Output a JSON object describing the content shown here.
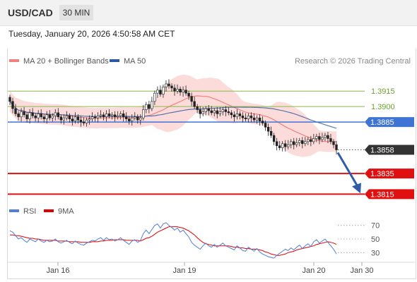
{
  "header": {
    "symbol": "USD/CAD",
    "timeframe": "30 MIN"
  },
  "datetime": "Tuesday, January 20, 2026 4:50:58 AM CET",
  "legend": {
    "bollinger_label": "MA 20 + Bollinger Bands",
    "ma50_label": "MA 50",
    "copyright": "Research © 2026 Trading Central",
    "rsi_label": "RSI",
    "rsi_ma_label": "9MA"
  },
  "colors": {
    "bollinger": "#f08080",
    "band_fill": "#fbd0cf",
    "ma50": "#2c5aa0",
    "rsi": "#4f7fd6",
    "rsi_ma": "#e00000",
    "resistance": "#8ab84a",
    "pivot": "#3f74d4",
    "support": "#e01010",
    "current": "#333333",
    "arrow": "#2f5da8"
  },
  "chart_data": [
    {
      "type": "candlestick",
      "title": "USD/CAD 30 MIN",
      "x_ticks": [
        "Jan 16",
        "Jan 19",
        "Jan 20",
        "Jan 30"
      ],
      "ylim": [
        1.3805,
        1.3935
      ],
      "levels": [
        {
          "value": 1.3915,
          "label": "1.3915",
          "kind": "resistance"
        },
        {
          "value": 1.39,
          "label": "1.3900",
          "kind": "resistance"
        },
        {
          "value": 1.3885,
          "label": "1.3885",
          "kind": "pivot"
        },
        {
          "value": 1.3858,
          "label": "1.3858",
          "kind": "current"
        },
        {
          "value": 1.3835,
          "label": "1.3835",
          "kind": "support"
        },
        {
          "value": 1.3815,
          "label": "1.3815",
          "kind": "support"
        }
      ],
      "close": [
        1.3905,
        1.3898,
        1.3893,
        1.389,
        1.3895,
        1.3892,
        1.3888,
        1.3894,
        1.3891,
        1.3889,
        1.3893,
        1.389,
        1.3888,
        1.3892,
        1.3889,
        1.3891,
        1.3894,
        1.389,
        1.3887,
        1.3889,
        1.3891,
        1.3888,
        1.3886,
        1.389,
        1.3887,
        1.3885,
        1.3884,
        1.3887,
        1.3888,
        1.389,
        1.3889,
        1.3891,
        1.3892,
        1.389,
        1.3893,
        1.3891,
        1.3892,
        1.389,
        1.3891,
        1.3893,
        1.389,
        1.3888,
        1.3886,
        1.3889,
        1.389,
        1.3887,
        1.3889,
        1.3897,
        1.3902,
        1.3898,
        1.3905,
        1.3913,
        1.3916,
        1.3912,
        1.3919,
        1.3922,
        1.392,
        1.3918,
        1.3915,
        1.3917,
        1.3914,
        1.3916,
        1.3913,
        1.391,
        1.3905,
        1.39,
        1.3897,
        1.3893,
        1.3895,
        1.3898,
        1.3896,
        1.3894,
        1.3896,
        1.3893,
        1.3895,
        1.3897,
        1.3895,
        1.3894,
        1.3892,
        1.389,
        1.3893,
        1.3891,
        1.3889,
        1.3888,
        1.3891,
        1.3889,
        1.3887,
        1.3889,
        1.3886,
        1.3884,
        1.388,
        1.3876,
        1.3872,
        1.3866,
        1.3862,
        1.386,
        1.3864,
        1.3861,
        1.3863,
        1.3866,
        1.3863,
        1.3865,
        1.3867,
        1.3864,
        1.3866,
        1.3868,
        1.3866,
        1.3869,
        1.3871,
        1.3868,
        1.387,
        1.3872,
        1.3869,
        1.3866,
        1.3863,
        1.3858
      ],
      "series": [
        {
          "name": "MA 20 + Bollinger Bands"
        },
        {
          "name": "MA 50"
        }
      ]
    },
    {
      "type": "line",
      "title": "RSI",
      "ylim": [
        20,
        80
      ],
      "y_ticks": [
        70,
        50,
        30
      ],
      "series": [
        {
          "name": "RSI",
          "values": [
            62,
            60,
            55,
            50,
            52,
            48,
            45,
            50,
            48,
            46,
            50,
            47,
            45,
            48,
            46,
            47,
            50,
            46,
            44,
            46,
            48,
            45,
            43,
            47,
            44,
            42,
            41,
            44,
            46,
            48,
            47,
            50,
            52,
            48,
            52,
            49,
            50,
            47,
            49,
            52,
            48,
            45,
            42,
            47,
            49,
            45,
            48,
            58,
            63,
            58,
            64,
            70,
            72,
            66,
            72,
            74,
            70,
            67,
            63,
            66,
            60,
            63,
            58,
            53,
            45,
            41,
            38,
            35,
            40,
            44,
            40,
            38,
            42,
            38,
            41,
            44,
            40,
            38,
            36,
            34,
            40,
            37,
            33,
            32,
            38,
            35,
            32,
            36,
            31,
            28,
            26,
            24,
            23,
            22,
            26,
            29,
            32,
            35,
            33,
            37,
            34,
            38,
            41,
            36,
            40,
            43,
            39,
            46,
            49,
            44,
            47,
            50,
            45,
            40,
            35,
            28
          ]
        },
        {
          "name": "9MA",
          "values": [
            56,
            56,
            55,
            55,
            54,
            53,
            52,
            51,
            51,
            50,
            50,
            49,
            48,
            48,
            48,
            48,
            48,
            47,
            47,
            47,
            47,
            46,
            46,
            46,
            46,
            45,
            45,
            45,
            45,
            46,
            46,
            46,
            47,
            47,
            48,
            48,
            48,
            49,
            49,
            49,
            49,
            48,
            48,
            48,
            48,
            48,
            47,
            49,
            51,
            52,
            54,
            57,
            60,
            62,
            64,
            66,
            68,
            68,
            68,
            68,
            67,
            66,
            64,
            62,
            59,
            56,
            52,
            48,
            45,
            43,
            42,
            41,
            40,
            40,
            40,
            40,
            40,
            40,
            39,
            38,
            38,
            37,
            37,
            36,
            36,
            35,
            35,
            35,
            34,
            33,
            31,
            30,
            28,
            27,
            26,
            26,
            27,
            28,
            30,
            31,
            32,
            34,
            35,
            36,
            37,
            38,
            39,
            40,
            42,
            43,
            44,
            45,
            46,
            45,
            44,
            42
          ]
        }
      ]
    }
  ]
}
